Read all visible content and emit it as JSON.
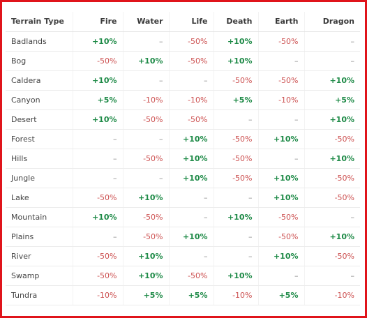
{
  "table": {
    "headers": [
      "Terrain Type",
      "Fire",
      "Water",
      "Life",
      "Death",
      "Earth",
      "Dragon"
    ],
    "rows": [
      {
        "name": "Badlands",
        "values": [
          "+10%",
          "–",
          "-50%",
          "+10%",
          "-50%",
          "–"
        ]
      },
      {
        "name": "Bog",
        "values": [
          "-50%",
          "+10%",
          "-50%",
          "+10%",
          "–",
          "–"
        ]
      },
      {
        "name": "Caldera",
        "values": [
          "+10%",
          "–",
          "–",
          "-50%",
          "-50%",
          "+10%"
        ]
      },
      {
        "name": "Canyon",
        "values": [
          "+5%",
          "-10%",
          "-10%",
          "+5%",
          "-10%",
          "+5%"
        ]
      },
      {
        "name": "Desert",
        "values": [
          "+10%",
          "-50%",
          "-50%",
          "–",
          "–",
          "+10%"
        ]
      },
      {
        "name": "Forest",
        "values": [
          "–",
          "–",
          "+10%",
          "-50%",
          "+10%",
          "-50%"
        ]
      },
      {
        "name": "Hills",
        "values": [
          "–",
          "-50%",
          "+10%",
          "-50%",
          "–",
          "+10%"
        ]
      },
      {
        "name": "Jungle",
        "values": [
          "–",
          "–",
          "+10%",
          "-50%",
          "+10%",
          "-50%"
        ]
      },
      {
        "name": "Lake",
        "values": [
          "-50%",
          "+10%",
          "–",
          "–",
          "+10%",
          "-50%"
        ]
      },
      {
        "name": "Mountain",
        "values": [
          "+10%",
          "-50%",
          "–",
          "+10%",
          "-50%",
          "–"
        ]
      },
      {
        "name": "Plains",
        "values": [
          "–",
          "-50%",
          "+10%",
          "–",
          "-50%",
          "+10%"
        ]
      },
      {
        "name": "River",
        "values": [
          "-50%",
          "+10%",
          "–",
          "–",
          "+10%",
          "-50%"
        ]
      },
      {
        "name": "Swamp",
        "values": [
          "-50%",
          "+10%",
          "-50%",
          "+10%",
          "–",
          "–"
        ]
      },
      {
        "name": "Tundra",
        "values": [
          "-10%",
          "+5%",
          "+5%",
          "-10%",
          "+5%",
          "-10%"
        ]
      }
    ]
  },
  "colors": {
    "frame_border": "#e0141b",
    "positive": "#1e8a47",
    "negative": "#cc4f4f",
    "neutral": "#8a8a8a"
  }
}
